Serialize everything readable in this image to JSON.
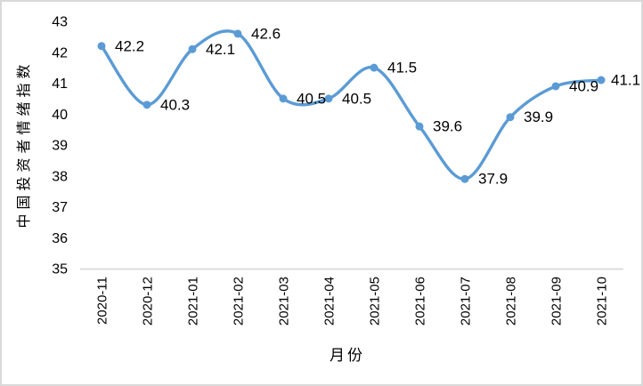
{
  "chart_data": {
    "type": "line",
    "title": "",
    "categories": [
      "2020-11",
      "2020-12",
      "2021-01",
      "2021-02",
      "2021-03",
      "2021-04",
      "2021-05",
      "2021-06",
      "2021-07",
      "2021-08",
      "2021-09",
      "2021-10"
    ],
    "series": [
      {
        "name": "中国投资者情绪指数",
        "values": [
          42.2,
          40.3,
          42.1,
          42.6,
          40.5,
          40.5,
          41.5,
          39.6,
          37.9,
          39.9,
          40.9,
          41.1
        ]
      }
    ],
    "data_labels": [
      "42.2",
      "40.3",
      "42.1",
      "42.6",
      "40.5",
      "40.5",
      "41.5",
      "39.6",
      "37.9",
      "39.9",
      "40.9",
      "41.1"
    ],
    "xlabel": "月份",
    "ylabel": "中国投资者情绪指数",
    "ylim": [
      35,
      43
    ],
    "yticks": [
      35,
      36,
      37,
      38,
      39,
      40,
      41,
      42,
      43
    ],
    "grid": false,
    "legend_position": "none",
    "smooth": true,
    "marker": "circle"
  },
  "colors": {
    "line": "#5b9bd5",
    "marker": "#5b9bd5",
    "axis_line": "#d9d9d9",
    "frame_border": "#d9d9d9",
    "text": "#000000",
    "background": "#ffffff"
  }
}
